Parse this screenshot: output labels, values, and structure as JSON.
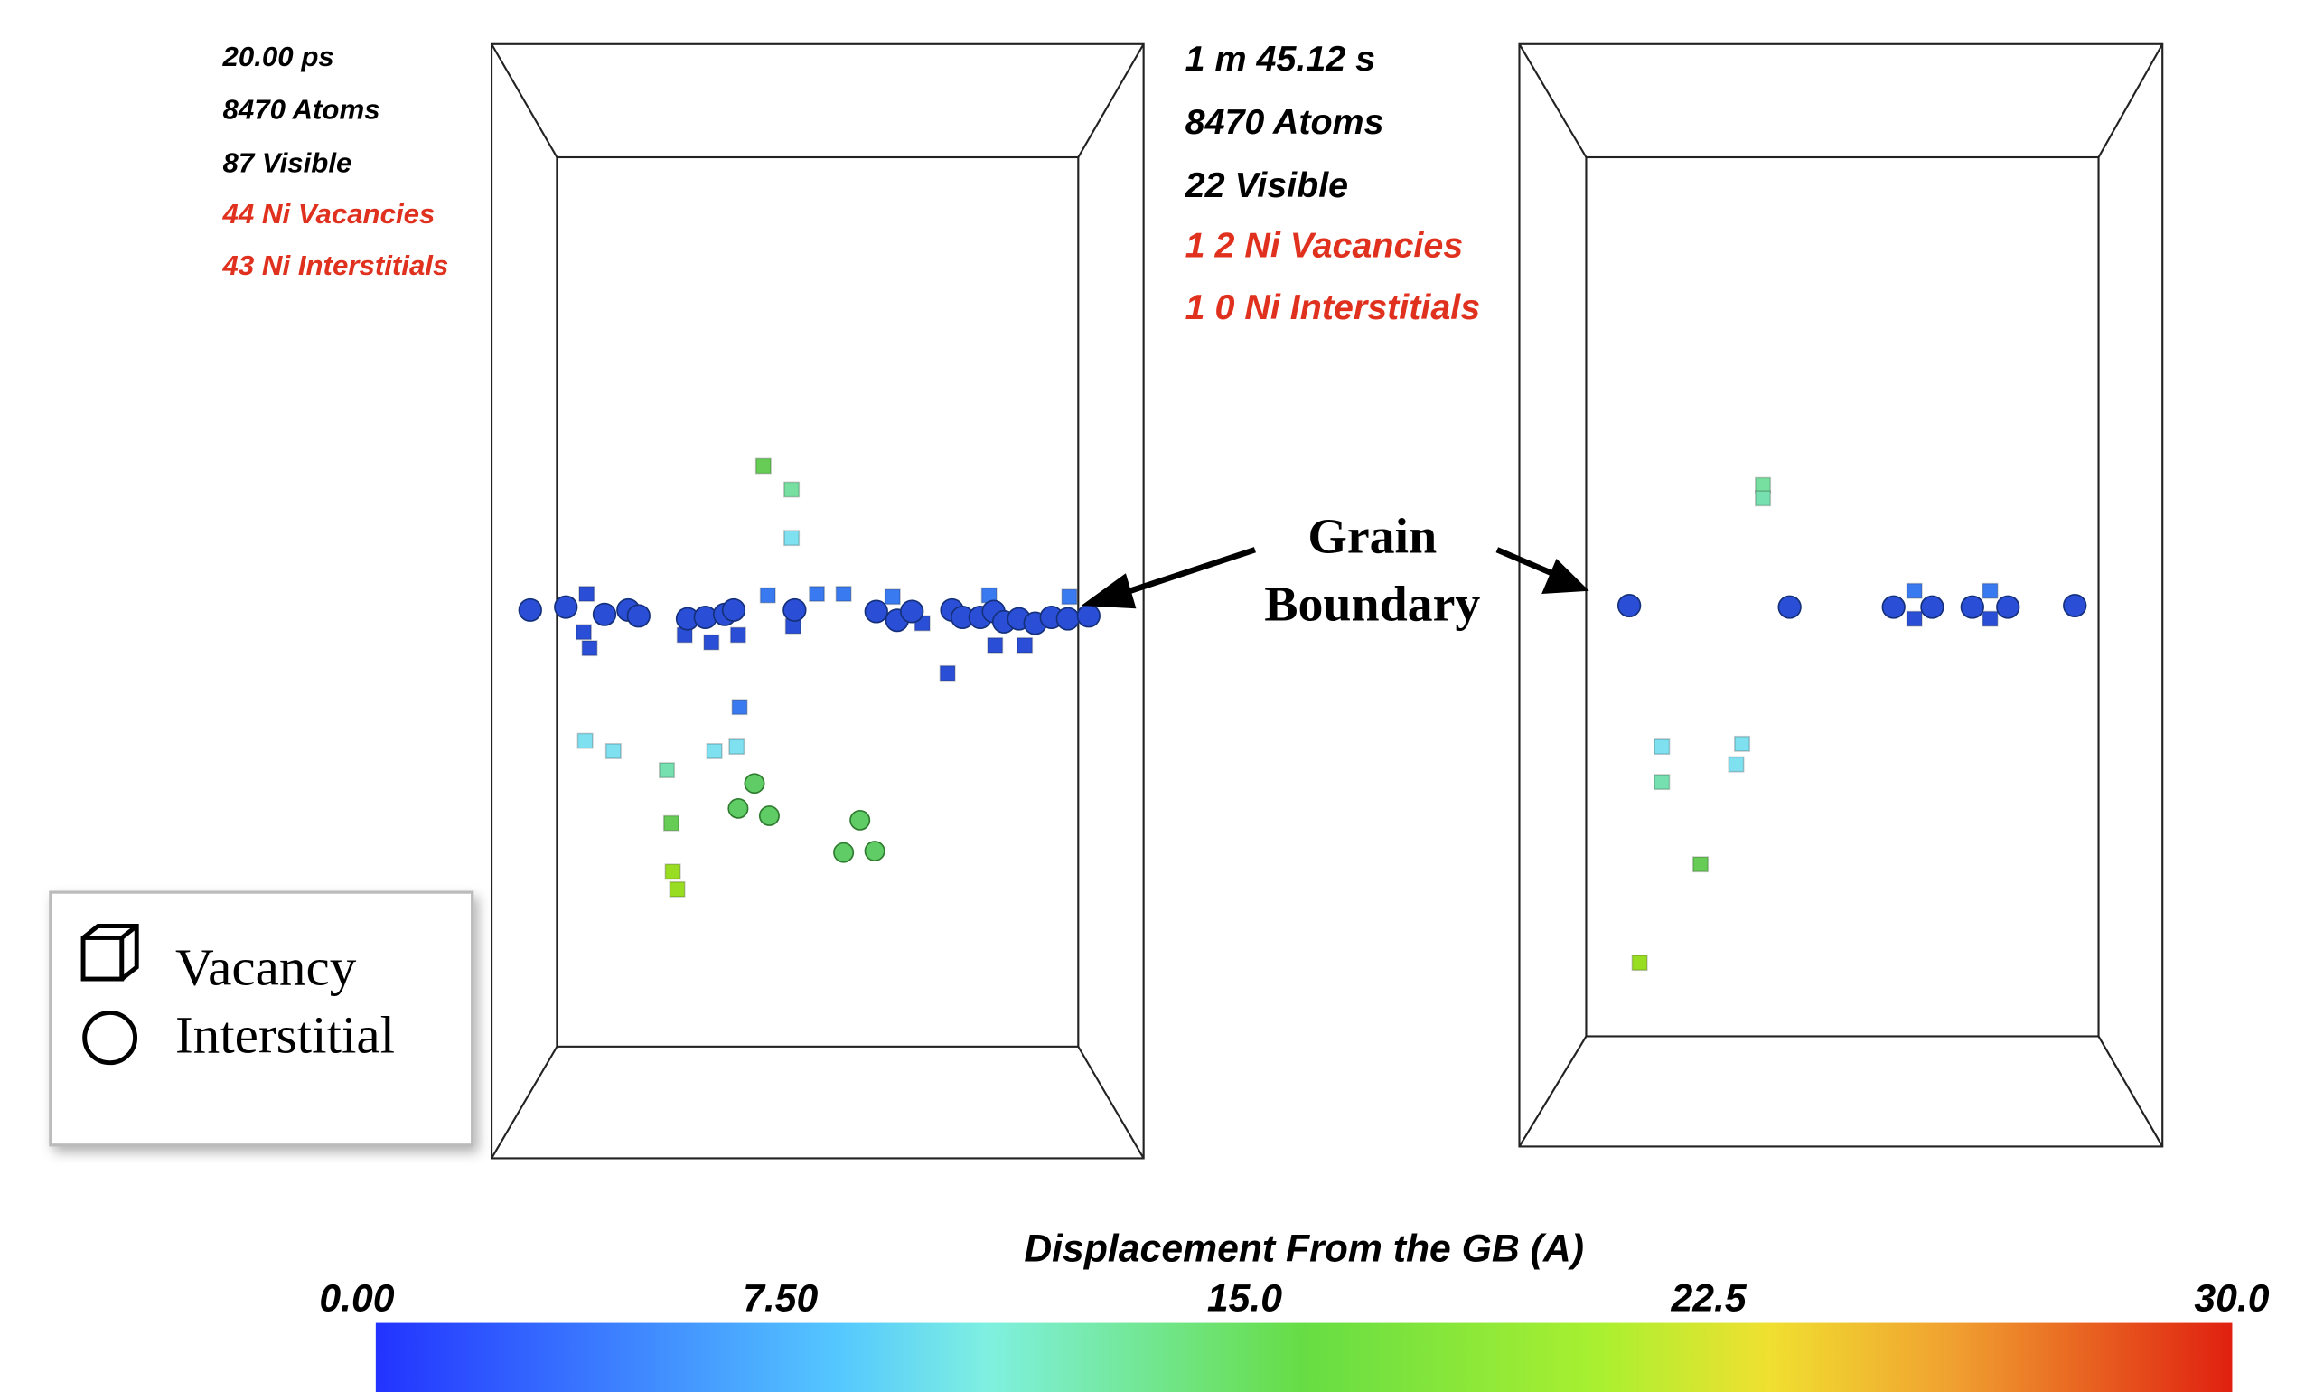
{
  "left_panel": {
    "time": "20.00 ps",
    "atoms": "8470 Atoms",
    "visible": "87 Visible",
    "vacancies": "44 Ni Vacancies",
    "interstitials": "43 Ni Interstitials"
  },
  "right_panel": {
    "time": "1  m 45.12 s",
    "atoms": "8470 Atoms",
    "visible": "22 Visible",
    "vacancies": "1 2 Ni Vacancies",
    "interstitials": "1 0 Ni Interstitials"
  },
  "annotation": {
    "line1": "Grain",
    "line2": "Boundary"
  },
  "legend": {
    "items": [
      "Vacancy",
      "Interstitial"
    ]
  },
  "colorbar": {
    "title": "Displacement From the GB (A)",
    "ticks": [
      "0.00",
      "7.50",
      "15.0",
      "22.5",
      "30.0"
    ]
  }
}
